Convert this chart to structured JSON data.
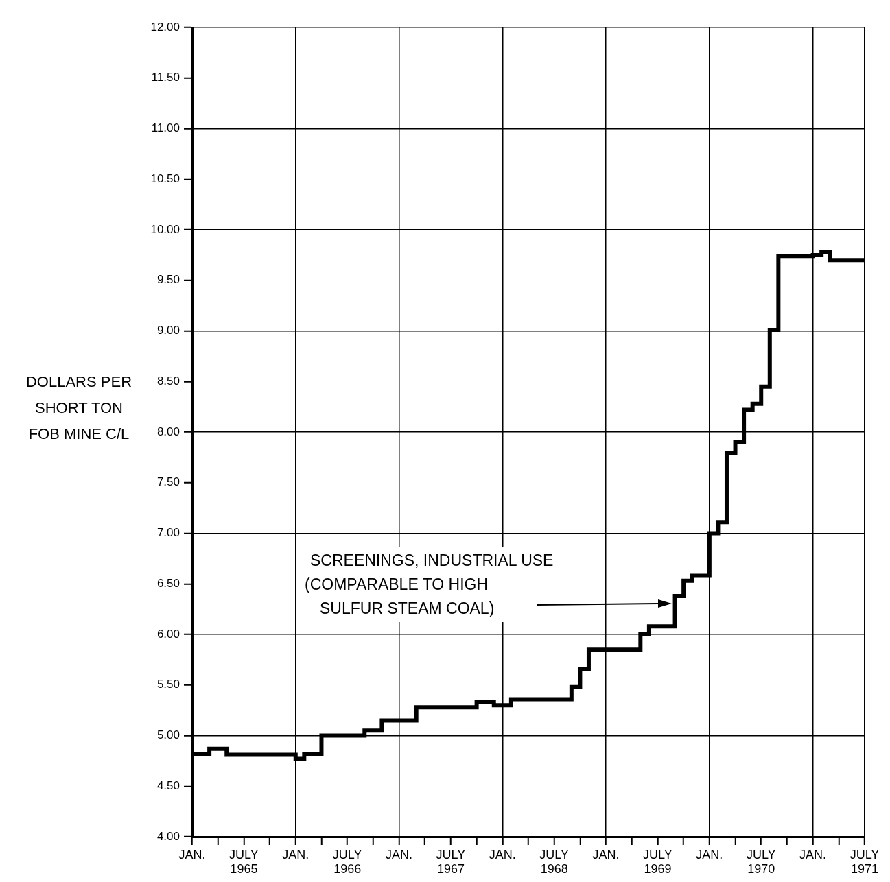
{
  "chart_data": {
    "type": "step",
    "ylabel": "DOLLARS PER\nSHORT TON\nFOB MINE C/L",
    "color": "#000000",
    "x": [
      "1965-01",
      "1965-03",
      "1965-05",
      "1966-01",
      "1966-02",
      "1966-04",
      "1966-09",
      "1966-11",
      "1967-03",
      "1967-10",
      "1967-12",
      "1968-02",
      "1968-09",
      "1968-10",
      "1968-11",
      "1969-05",
      "1969-06",
      "1969-09",
      "1969-10",
      "1969-11",
      "1970-01",
      "1970-02",
      "1970-03",
      "1970-04",
      "1970-05",
      "1970-06",
      "1970-07",
      "1970-08",
      "1970-09",
      "1971-01",
      "1971-02",
      "1971-03",
      "1971-07"
    ],
    "values": [
      4.82,
      4.87,
      4.81,
      4.77,
      4.82,
      5.0,
      5.05,
      5.15,
      5.28,
      5.33,
      5.3,
      5.36,
      5.48,
      5.66,
      5.85,
      6.0,
      6.08,
      6.38,
      6.53,
      6.58,
      7.0,
      7.11,
      7.79,
      7.9,
      8.22,
      8.28,
      8.45,
      9.01,
      9.74,
      9.75,
      9.78,
      9.7,
      9.7
    ],
    "xlim": [
      "1965-01",
      "1971-07"
    ],
    "xticks": [
      {
        "value": "1965-01",
        "label": "JAN."
      },
      {
        "value": "1965-04",
        "label": null
      },
      {
        "value": "1965-07",
        "label": "JULY\n1965"
      },
      {
        "value": "1965-10",
        "label": null
      },
      {
        "value": "1966-01",
        "label": "JAN."
      },
      {
        "value": "1966-04",
        "label": null
      },
      {
        "value": "1966-07",
        "label": "JULY\n1966"
      },
      {
        "value": "1966-10",
        "label": null
      },
      {
        "value": "1967-01",
        "label": "JAN."
      },
      {
        "value": "1967-04",
        "label": null
      },
      {
        "value": "1967-07",
        "label": "JULY\n1967"
      },
      {
        "value": "1967-10",
        "label": null
      },
      {
        "value": "1968-01",
        "label": "JAN."
      },
      {
        "value": "1968-04",
        "label": null
      },
      {
        "value": "1968-07",
        "label": "JULY\n1968"
      },
      {
        "value": "1968-10",
        "label": null
      },
      {
        "value": "1969-01",
        "label": "JAN."
      },
      {
        "value": "1969-04",
        "label": null
      },
      {
        "value": "1969-07",
        "label": "JULY\n1969"
      },
      {
        "value": "1969-10",
        "label": null
      },
      {
        "value": "1970-01",
        "label": "JAN."
      },
      {
        "value": "1970-04",
        "label": null
      },
      {
        "value": "1970-07",
        "label": "JULY\n1970"
      },
      {
        "value": "1970-10",
        "label": null
      },
      {
        "value": "1971-01",
        "label": "JAN."
      },
      {
        "value": "1971-04",
        "label": null
      },
      {
        "value": "1971-07",
        "label": "JULY\n1971"
      }
    ],
    "ylim": [
      4,
      12
    ],
    "yticks": [
      {
        "value": 4,
        "label": "4.00"
      },
      {
        "value": 4.5,
        "label": "4.50"
      },
      {
        "value": 5,
        "label": "5.00"
      },
      {
        "value": 5.5,
        "label": "5.50"
      },
      {
        "value": 6,
        "label": "6.00"
      },
      {
        "value": 6.5,
        "label": "6.50"
      },
      {
        "value": 7,
        "label": "7.00"
      },
      {
        "value": 7.5,
        "label": "7.50"
      },
      {
        "value": 8,
        "label": "8.00"
      },
      {
        "value": 8.5,
        "label": "8.50"
      },
      {
        "value": 9,
        "label": "9.00"
      },
      {
        "value": 9.5,
        "label": "9.50"
      },
      {
        "value": 10,
        "label": "10.00"
      },
      {
        "value": 10.5,
        "label": "10.50"
      },
      {
        "value": 11,
        "label": "11.00"
      },
      {
        "value": 11.5,
        "label": "11.50"
      },
      {
        "value": 12,
        "label": "12.00"
      }
    ],
    "grid": true,
    "annotations": [
      "SCREENINGS, INDUSTRIAL USE\n(COMPARABLE TO HIGH\nSULFUR STEAM COAL)"
    ]
  }
}
